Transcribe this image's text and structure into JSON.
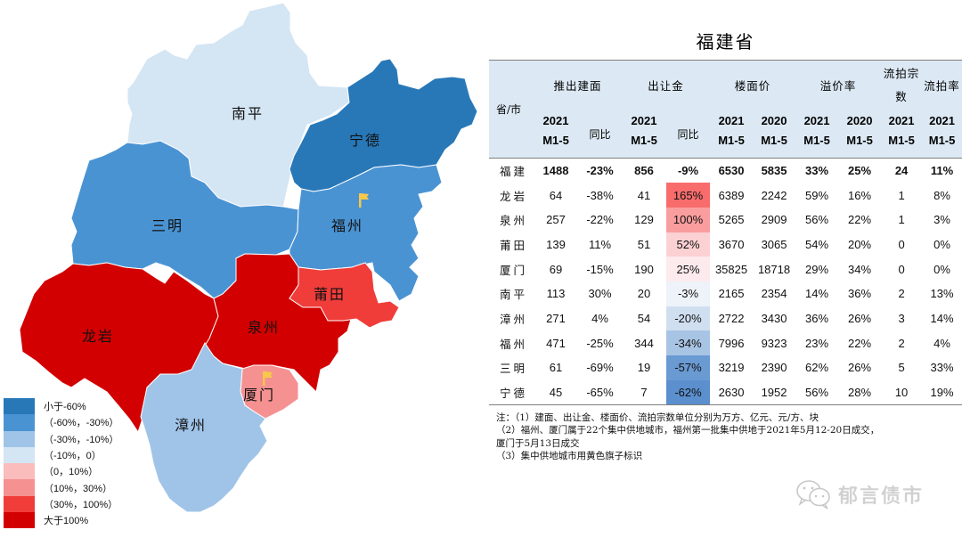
{
  "title": "福建省",
  "colors": {
    "lt_neg60": "#2878b8",
    "neg60_neg30": "#4a93d3",
    "neg30_neg10": "#a0c4e8",
    "neg10_0": "#d4e5f4",
    "0_10": "#fbbcbc",
    "10_30": "#f59191",
    "30_100": "#f03d3a",
    "gt_100": "#d20000",
    "flag": "#f7c84a",
    "header_bg": "#dce9f4"
  },
  "map": {
    "regions": [
      {
        "name": "南平",
        "category": "neg10_0"
      },
      {
        "name": "宁德",
        "category": "lt_neg60"
      },
      {
        "name": "三明",
        "category": "neg60_neg30"
      },
      {
        "name": "福州",
        "category": "neg60_neg30",
        "flag": true
      },
      {
        "name": "龙岩",
        "category": "gt_100"
      },
      {
        "name": "泉州",
        "category": "gt_100"
      },
      {
        "name": "莆田",
        "category": "30_100"
      },
      {
        "name": "厦门",
        "category": "10_30",
        "flag": true
      },
      {
        "name": "漳州",
        "category": "neg30_neg10"
      }
    ]
  },
  "legend": [
    {
      "label": "小于-60%",
      "key": "lt_neg60"
    },
    {
      "label": "（-60%，-30%）",
      "key": "neg60_neg30"
    },
    {
      "label": "（-30%，-10%）",
      "key": "neg30_neg10"
    },
    {
      "label": "（-10%，0）",
      "key": "neg10_0"
    },
    {
      "label": "（0，10%）",
      "key": "0_10"
    },
    {
      "label": "（10%，30%）",
      "key": "10_30"
    },
    {
      "label": "（30%，100%）",
      "key": "30_100"
    },
    {
      "label": "大于100%",
      "key": "gt_100"
    }
  ],
  "table": {
    "header": {
      "city": "省/市",
      "groups": [
        "推出建面",
        "出让金",
        "楼面价",
        "溢价率",
        "流拍宗数",
        "流拍率"
      ],
      "year_2021": "2021",
      "year_2020": "2020",
      "period": "M1-5",
      "yoy": "同比"
    },
    "rows": [
      {
        "city": "福建",
        "area": "1488",
        "area_yoy": "-23%",
        "rev": "856",
        "rev_yoy": "-9%",
        "price21": "6530",
        "price20": "5835",
        "prem21": "33%",
        "prem20": "25%",
        "failed": "24",
        "fail_rate": "11%",
        "total": true
      },
      {
        "city": "龙岩",
        "area": "64",
        "area_yoy": "-38%",
        "rev": "41",
        "rev_yoy": "165%",
        "price21": "6389",
        "price20": "2242",
        "prem21": "59%",
        "prem20": "16%",
        "failed": "1",
        "fail_rate": "8%",
        "heat": "#f86c6c"
      },
      {
        "city": "泉州",
        "area": "257",
        "area_yoy": "-22%",
        "rev": "129",
        "rev_yoy": "100%",
        "price21": "5265",
        "price20": "2909",
        "prem21": "56%",
        "prem20": "22%",
        "failed": "1",
        "fail_rate": "3%",
        "heat": "#fa9d9e"
      },
      {
        "city": "莆田",
        "area": "139",
        "area_yoy": "11%",
        "rev": "51",
        "rev_yoy": "52%",
        "price21": "3670",
        "price20": "3065",
        "prem21": "54%",
        "prem20": "20%",
        "failed": "0",
        "fail_rate": "0%",
        "heat": "#fcd1d3"
      },
      {
        "city": "厦门",
        "area": "69",
        "area_yoy": "-15%",
        "rev": "190",
        "rev_yoy": "25%",
        "price21": "35825",
        "price20": "18718",
        "prem21": "29%",
        "prem20": "34%",
        "failed": "0",
        "fail_rate": "0%",
        "heat": "#fdeaed"
      },
      {
        "city": "南平",
        "area": "113",
        "area_yoy": "30%",
        "rev": "20",
        "rev_yoy": "-3%",
        "price21": "2165",
        "price20": "2354",
        "prem21": "14%",
        "prem20": "36%",
        "failed": "2",
        "fail_rate": "13%",
        "heat": "#eef3fa"
      },
      {
        "city": "漳州",
        "area": "271",
        "area_yoy": "4%",
        "rev": "54",
        "rev_yoy": "-20%",
        "price21": "2722",
        "price20": "3430",
        "prem21": "36%",
        "prem20": "26%",
        "failed": "3",
        "fail_rate": "14%",
        "heat": "#d0dff0"
      },
      {
        "city": "福州",
        "area": "471",
        "area_yoy": "-25%",
        "rev": "344",
        "rev_yoy": "-34%",
        "price21": "7996",
        "price20": "9323",
        "prem21": "23%",
        "prem20": "22%",
        "failed": "2",
        "fail_rate": "4%",
        "heat": "#a8c4e4"
      },
      {
        "city": "三明",
        "area": "61",
        "area_yoy": "-69%",
        "rev": "19",
        "rev_yoy": "-57%",
        "price21": "3219",
        "price20": "2390",
        "prem21": "62%",
        "prem20": "26%",
        "failed": "5",
        "fail_rate": "33%",
        "heat": "#6a9ad2"
      },
      {
        "city": "宁德",
        "area": "45",
        "area_yoy": "-65%",
        "rev": "7",
        "rev_yoy": "-62%",
        "price21": "2630",
        "price20": "1952",
        "prem21": "56%",
        "prem20": "28%",
        "failed": "10",
        "fail_rate": "19%",
        "heat": "#5b8fce"
      }
    ]
  },
  "notes": [
    "注：（1）建面、出让金、楼面价、流拍宗数单位分别为万方、亿元、元/方、块",
    "（2）福州、厦门属于22个集中供地城市，福州第一批集中供地于2021年5月12-20日成交，",
    "厦门于5月13日成交",
    "（3）集中供地城市用黄色旗子标识"
  ],
  "watermark": {
    "text": "郁言债市",
    "icon": "wechat-icon"
  },
  "chart_data": {
    "type": "table",
    "title": "福建省",
    "columns": [
      "省/市",
      "推出建面 2021 M1-5",
      "推出建面 同比",
      "出让金 2021 M1-5",
      "出让金 同比",
      "楼面价 2021 M1-5",
      "楼面价 2020 M1-5",
      "溢价率 2021 M1-5",
      "溢价率 2020 M1-5",
      "流拍宗数 2021 M1-5",
      "流拍率 2021 M1-5"
    ],
    "rows": [
      [
        "福建",
        1488,
        "-23%",
        856,
        "-9%",
        6530,
        5835,
        "33%",
        "25%",
        24,
        "11%"
      ],
      [
        "龙岩",
        64,
        "-38%",
        41,
        "165%",
        6389,
        2242,
        "59%",
        "16%",
        1,
        "8%"
      ],
      [
        "泉州",
        257,
        "-22%",
        129,
        "100%",
        5265,
        2909,
        "56%",
        "22%",
        1,
        "3%"
      ],
      [
        "莆田",
        139,
        "11%",
        51,
        "52%",
        3670,
        3065,
        "54%",
        "20%",
        0,
        "0%"
      ],
      [
        "厦门",
        69,
        "-15%",
        190,
        "25%",
        35825,
        18718,
        "29%",
        "34%",
        0,
        "0%"
      ],
      [
        "南平",
        113,
        "30%",
        20,
        "-3%",
        2165,
        2354,
        "14%",
        "36%",
        2,
        "13%"
      ],
      [
        "漳州",
        271,
        "4%",
        54,
        "-20%",
        2722,
        3430,
        "36%",
        "26%",
        3,
        "14%"
      ],
      [
        "福州",
        471,
        "-25%",
        344,
        "-34%",
        7996,
        9323,
        "23%",
        "22%",
        2,
        "4%"
      ],
      [
        "三明",
        61,
        "-69%",
        19,
        "-57%",
        3219,
        2390,
        "62%",
        "26%",
        5,
        "33%"
      ],
      [
        "宁德",
        45,
        "-65%",
        7,
        "-62%",
        2630,
        1952,
        "56%",
        "28%",
        10,
        "19%"
      ]
    ],
    "map": {
      "type": "choropleth",
      "metric": "出让金同比",
      "regions": {
        "南平": -3,
        "宁德": -62,
        "三明": -57,
        "福州": -34,
        "龙岩": 165,
        "泉州": 100,
        "莆田": 52,
        "厦门": 25,
        "漳州": -20
      },
      "legend": [
        "小于-60%",
        "（-60%，-30%）",
        "（-30%，-10%）",
        "（-10%，0）",
        "（0，10%）",
        "（10%，30%）",
        "（30%，100%）",
        "大于100%"
      ]
    }
  }
}
